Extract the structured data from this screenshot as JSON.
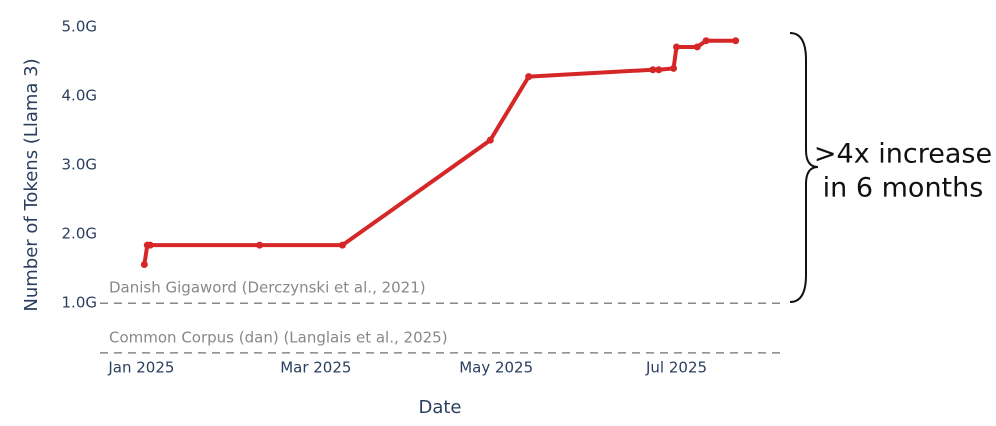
{
  "chart_data": {
    "type": "line",
    "y_label": "Number of Tokens (Llama 3)",
    "x_label": "Date",
    "x": [
      "2025-01-02",
      "2025-01-03",
      "2025-01-04",
      "2025-02-10",
      "2025-03-10",
      "2025-04-29",
      "2025-05-12",
      "2025-06-23",
      "2025-06-25",
      "2025-06-30",
      "2025-07-01",
      "2025-07-08",
      "2025-07-11",
      "2025-07-21"
    ],
    "values": [
      1.56,
      1.84,
      1.84,
      1.84,
      1.84,
      3.36,
      4.28,
      4.38,
      4.38,
      4.4,
      4.71,
      4.71,
      4.8,
      4.8
    ],
    "color": "#d62728",
    "xlim": [
      "2024-12-18",
      "2025-08-05"
    ],
    "xticks": [
      {
        "value": "2025-01-01",
        "label": "Jan 2025"
      },
      {
        "value": "2025-03-01",
        "label": "Mar 2025"
      },
      {
        "value": "2025-05-01",
        "label": "May 2025"
      },
      {
        "value": "2025-07-01",
        "label": "Jul 2025"
      }
    ],
    "ylim": [
      0.25,
      5.1
    ],
    "yticks": [
      {
        "value": 1,
        "label": "1.0G"
      },
      {
        "value": 2,
        "label": "2.0G"
      },
      {
        "value": 3,
        "label": "3.0G"
      },
      {
        "value": 4,
        "label": "4.0G"
      },
      {
        "value": 5,
        "label": "5.0G"
      }
    ],
    "reference_lines": [
      {
        "value": 1,
        "label": "Danish Gigaword (Derczynski et al., 2021)"
      },
      {
        "value": 0.28,
        "label": "Common Corpus (dan) (Langlais et al., 2025)"
      }
    ],
    "annotation": [
      ">4x increase",
      "in 6 months"
    ]
  }
}
